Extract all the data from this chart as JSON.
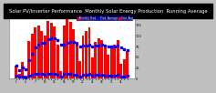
{
  "title": "Solar PV/Inverter Performance  Monthly Solar Energy Production  Running Average",
  "bar_values": [
    30,
    10,
    38,
    6,
    88,
    105,
    120,
    125,
    112,
    100,
    135,
    130,
    122,
    80,
    18,
    125,
    140,
    132,
    115,
    85,
    40,
    100,
    112,
    120,
    50,
    85,
    95,
    90,
    75,
    55,
    70,
    80,
    90,
    35,
    45,
    65
  ],
  "avg_values": [
    30,
    20,
    26,
    21,
    42,
    58,
    72,
    80,
    84,
    83,
    92,
    94,
    94,
    90,
    79,
    79,
    83,
    86,
    86,
    82,
    75,
    76,
    78,
    80,
    75,
    76,
    78,
    80,
    78,
    75,
    74,
    75,
    77,
    73,
    68,
    66
  ],
  "small_values": [
    6,
    4,
    5,
    3,
    7,
    9,
    10,
    11,
    10,
    9,
    11,
    11,
    10,
    8,
    4,
    10,
    11,
    11,
    9,
    8,
    5,
    8,
    9,
    10,
    6,
    8,
    8,
    8,
    7,
    6,
    7,
    7,
    8,
    5,
    5,
    6
  ],
  "bar_color": "#ff0000",
  "avg_color": "#0000ff",
  "small_color": "#0000ff",
  "bg_color": "#c0c0c0",
  "plot_bg": "#ffffff",
  "grid_color": "#ffffff",
  "title_bg": "#000000",
  "title_color": "#ffffff",
  "ylim": [
    0,
    150
  ],
  "ytick_labels": [
    "0",
    "25",
    "50",
    "75",
    "100",
    "125",
    "150"
  ],
  "ytick_vals": [
    0,
    25,
    50,
    75,
    100,
    125,
    150
  ],
  "title_fontsize": 3.8,
  "legend_items": [
    "Monthly Prod.",
    "Prod. Average",
    "Year  Avg"
  ],
  "legend_colors": [
    "#ff0000",
    "#0000ff",
    "#ff0000"
  ]
}
